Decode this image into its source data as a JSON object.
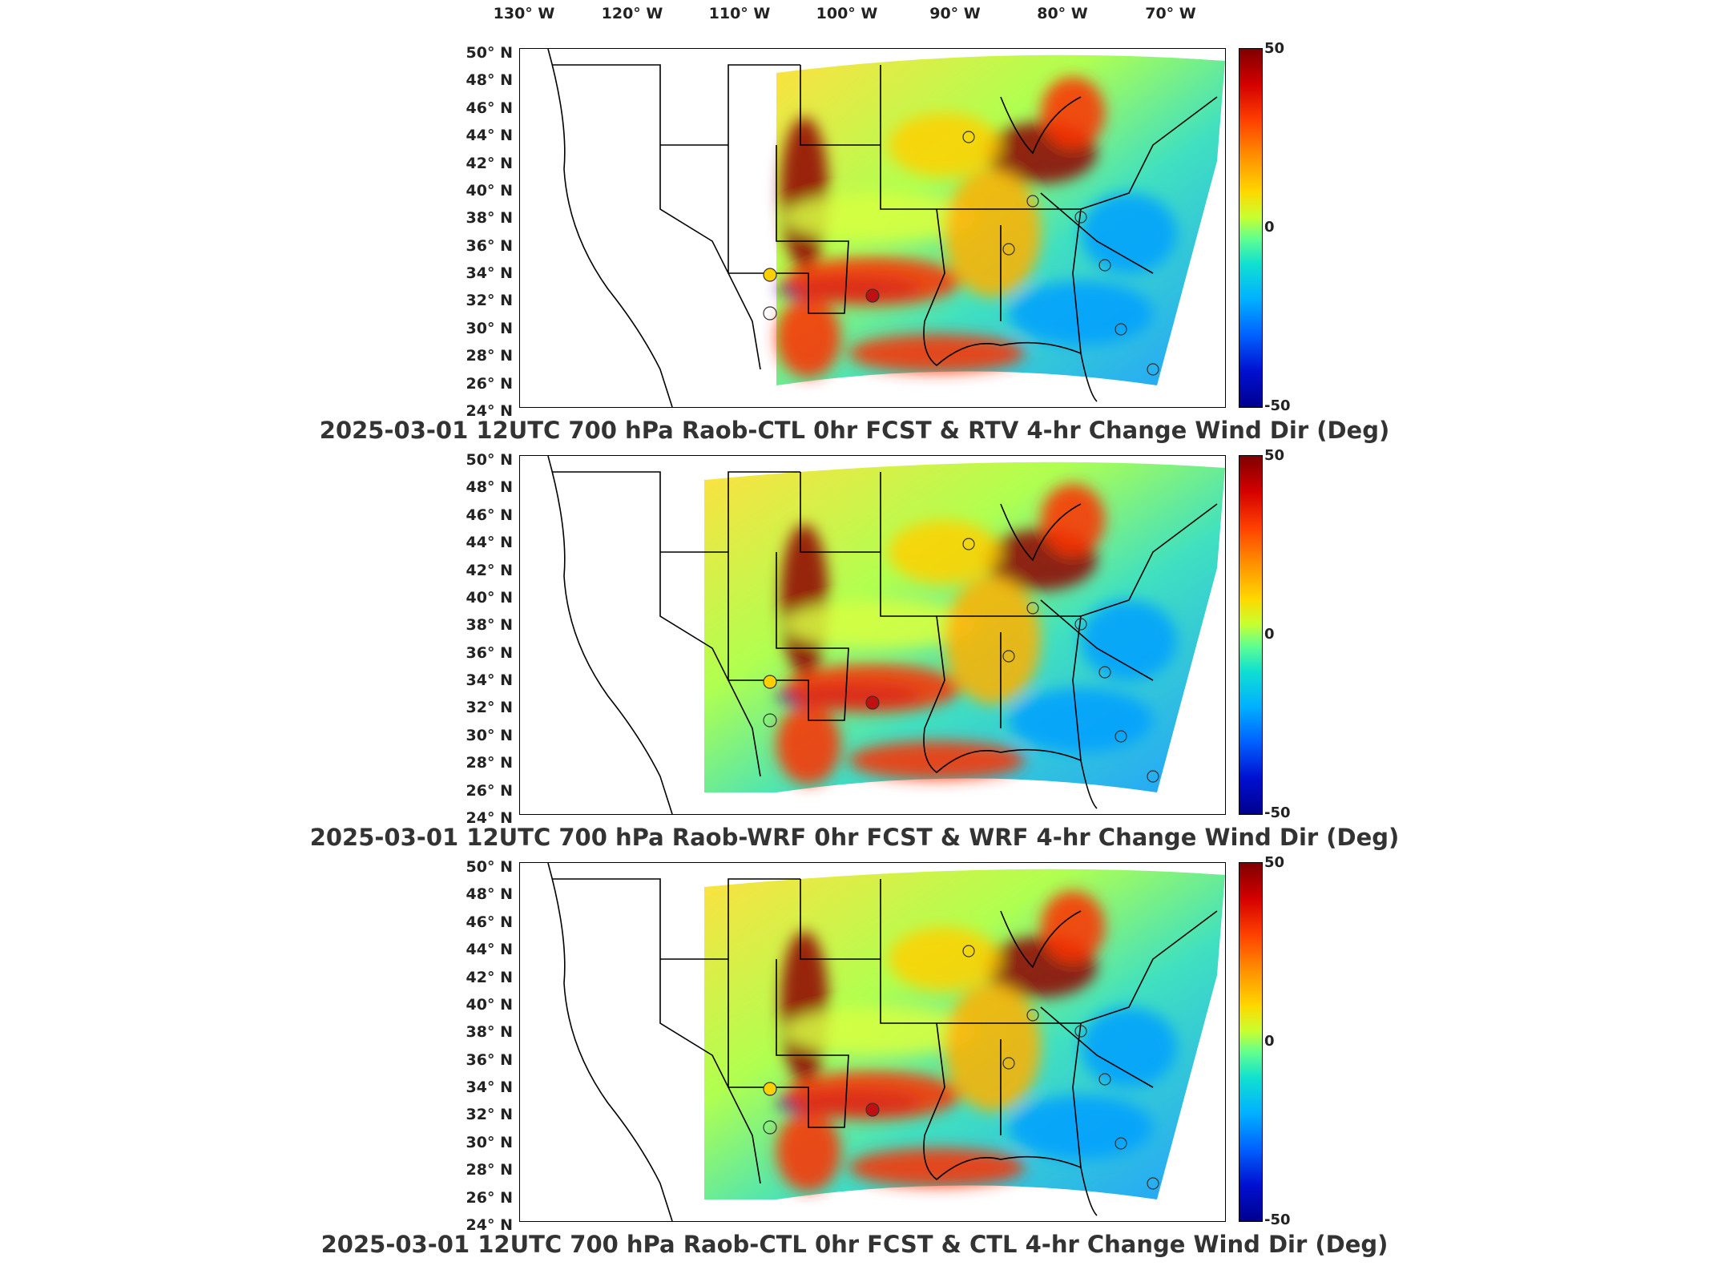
{
  "longitude_labels": [
    "130° W",
    "120° W",
    "110° W",
    "100° W",
    "90° W",
    "80° W",
    "70° W"
  ],
  "latitude_labels": [
    "50° N",
    "48° N",
    "46° N",
    "44° N",
    "42° N",
    "40° N",
    "38° N",
    "36° N",
    "34° N",
    "32° N",
    "30° N",
    "28° N",
    "26° N",
    "24° N"
  ],
  "colorbar": {
    "max_label": "50",
    "mid_label": "0",
    "min_label": "-50",
    "colormap": "jet"
  },
  "panels": [
    {
      "id": "rtv",
      "caption": "2025-03-01 12UTC 700 hPa Raob-CTL 0hr FCST & RTV 4-hr Change Wind Dir (Deg)"
    },
    {
      "id": "wrf",
      "caption": "2025-03-01 12UTC 700 hPa Raob-WRF 0hr FCST & WRF 4-hr Change Wind Dir (Deg)"
    },
    {
      "id": "ctl",
      "caption": "2025-03-01 12UTC 700 hPa Raob-CTL 0hr FCST & CTL 4-hr Change Wind Dir (Deg)"
    }
  ],
  "colors": {
    "strong_positive": "#8f0000",
    "positive": "#ff3000",
    "neutral": "#d8ff40",
    "negative": "#00a0ff",
    "strong_negative": "#00008f"
  }
}
